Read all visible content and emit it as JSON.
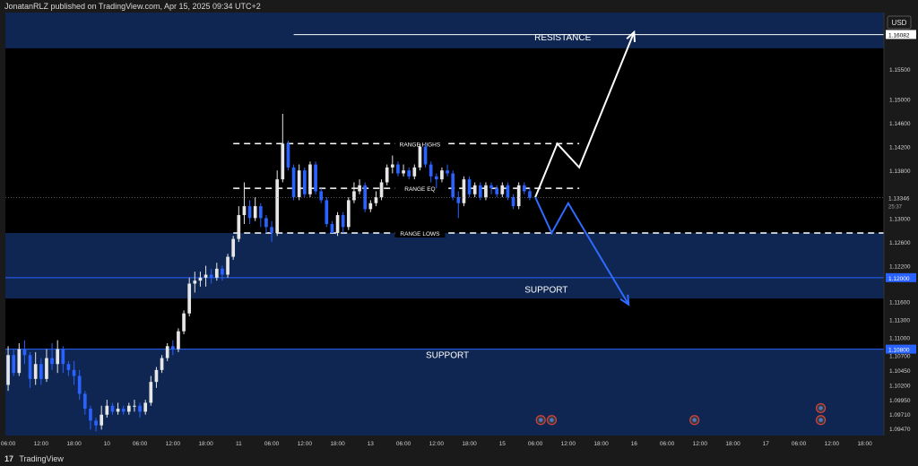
{
  "header": {
    "published": "JonatanRLZ published on TradingView.com, Apr 15, 2025 09:34 UTC+2"
  },
  "footer": {
    "logo": "17",
    "brand": "TradingView"
  },
  "colors": {
    "background": "#000000",
    "bull": "#e6e6e6",
    "bear": "#2962ff",
    "zone": "#102a5a",
    "support_line": "#2962ff",
    "projection_up": "#ffffff",
    "projection_down": "#2f6bff"
  },
  "chart_data": {
    "type": "candlestick",
    "symbol_currency": "USD",
    "ylim": [
      1.0935,
      1.1645
    ],
    "y_ticks": [
      1.155,
      1.15,
      1.146,
      1.142,
      1.138,
      1.13,
      1.126,
      1.122,
      1.116,
      1.113,
      1.11,
      1.107,
      1.1045,
      1.102,
      1.0995,
      1.0971,
      1.0947
    ],
    "y_tick_labels": [
      "1.15500",
      "1.15000",
      "1.14600",
      "1.14200",
      "1.13800",
      "1.13000",
      "1.12600",
      "1.12200",
      "1.11600",
      "1.11300",
      "1.11000",
      "1.10700",
      "1.10450",
      "1.10200",
      "1.09950",
      "1.09710",
      "1.09470"
    ],
    "x_ticks": [
      0,
      6,
      12,
      18,
      24,
      30,
      36,
      42,
      48,
      54,
      60,
      66,
      72,
      78,
      84,
      90,
      96,
      102,
      108,
      114,
      120,
      126,
      132,
      138,
      144,
      150,
      156
    ],
    "x_tick_labels": [
      "06:00",
      "12:00",
      "18:00",
      "10",
      "06:00",
      "12:00",
      "18:00",
      "11",
      "06:00",
      "12:00",
      "18:00",
      "13",
      "06:00",
      "12:00",
      "18:00",
      "15",
      "06:00",
      "12:00",
      "18:00",
      "16",
      "06:00",
      "12:00",
      "18:00",
      "17",
      "06:00",
      "12:00",
      "18:00"
    ],
    "xlim": [
      -0.5,
      159.5
    ],
    "price_labels": [
      {
        "value": 1.16082,
        "label": "1.16082"
      },
      {
        "value": 1.13346,
        "label": "1.13346",
        "sub": "25:37"
      },
      {
        "value": 1.12,
        "label": "1.12000"
      },
      {
        "value": 1.108,
        "label": "1.10800"
      }
    ],
    "zones": [
      {
        "name": "resistance-zone",
        "from": 1.1585,
        "to": 1.1645,
        "label": "RESISTANCE"
      },
      {
        "name": "support-zone-upper",
        "from": 1.1165,
        "to": 1.1275,
        "label": "SUPPORT"
      },
      {
        "name": "support-zone-lower",
        "from": 1.0935,
        "to": 1.108,
        "label": "SUPPORT"
      }
    ],
    "support_lines": [
      1.12,
      1.108
    ],
    "resistance_line": {
      "value": 1.1608,
      "x_start": 52,
      "x_end": 158
    },
    "range": {
      "x_start": 41,
      "x_end": 104,
      "highs": {
        "value": 1.1425,
        "label": "RANGE HIGHS"
      },
      "eq": {
        "value": 1.135,
        "label": "RANGE EQ"
      },
      "lows": {
        "value": 1.1275,
        "label": "RANGE LOWS"
      },
      "lows_extended_to": 159.5
    },
    "projection_up": [
      [
        96,
        1.1335
      ],
      [
        100,
        1.1425
      ],
      [
        104,
        1.1385
      ],
      [
        114,
        1.1612
      ]
    ],
    "projection_down": [
      [
        96,
        1.1335
      ],
      [
        99,
        1.1275
      ],
      [
        102,
        1.1325
      ],
      [
        113,
        1.1155
      ]
    ],
    "event_markers": [
      {
        "x": 97,
        "y": 1.0961,
        "kind": "flag"
      },
      {
        "x": 99,
        "y": 1.0961,
        "kind": "flag"
      },
      {
        "x": 125,
        "y": 1.0961,
        "kind": "flag"
      },
      {
        "x": 148,
        "y": 1.0981,
        "kind": "flag"
      },
      {
        "x": 148,
        "y": 1.0961,
        "kind": "flag"
      }
    ],
    "candles": [
      [
        0,
        1.102,
        1.107,
        1.1085,
        1.101
      ],
      [
        1,
        1.107,
        1.104,
        1.108,
        1.1035
      ],
      [
        2,
        1.104,
        1.108,
        1.109,
        1.1035
      ],
      [
        3,
        1.108,
        1.107,
        1.1095,
        1.1055
      ],
      [
        4,
        1.107,
        1.103,
        1.1075,
        1.1015
      ],
      [
        5,
        1.103,
        1.1055,
        1.1075,
        1.102
      ],
      [
        6,
        1.1055,
        1.103,
        1.1065,
        1.102
      ],
      [
        7,
        1.103,
        1.1065,
        1.108,
        1.1025
      ],
      [
        8,
        1.1065,
        1.1055,
        1.109,
        1.1045
      ],
      [
        9,
        1.1055,
        1.108,
        1.1095,
        1.104
      ],
      [
        10,
        1.108,
        1.1055,
        1.1085,
        1.104
      ],
      [
        11,
        1.1055,
        1.1045,
        1.106,
        1.1035
      ],
      [
        12,
        1.1045,
        1.1035,
        1.106,
        1.102
      ],
      [
        13,
        1.1035,
        1.1005,
        1.1045,
        1.0995
      ],
      [
        14,
        1.1005,
        1.098,
        1.101,
        1.097
      ],
      [
        15,
        1.098,
        1.096,
        1.0985,
        1.0945
      ],
      [
        16,
        1.096,
        1.0952,
        1.0965,
        1.0942
      ],
      [
        17,
        1.0952,
        1.097,
        1.0985,
        1.0945
      ],
      [
        18,
        1.097,
        1.0985,
        1.0995,
        1.0965
      ],
      [
        19,
        1.0985,
        1.0975,
        1.099,
        1.097
      ],
      [
        20,
        1.0975,
        1.098,
        1.099,
        1.097
      ],
      [
        21,
        1.098,
        1.0975,
        1.0985,
        1.097
      ],
      [
        22,
        1.0975,
        1.0985,
        1.099,
        1.097
      ],
      [
        23,
        1.0985,
        1.0985,
        1.0995,
        1.0975
      ],
      [
        24,
        1.0985,
        1.0975,
        1.099,
        1.0965
      ],
      [
        25,
        1.0975,
        1.099,
        1.0995,
        1.097
      ],
      [
        26,
        1.099,
        1.1025,
        1.1035,
        1.0985
      ],
      [
        27,
        1.1025,
        1.1045,
        1.105,
        1.1015
      ],
      [
        28,
        1.1045,
        1.1065,
        1.107,
        1.104
      ],
      [
        29,
        1.1065,
        1.1085,
        1.109,
        1.106
      ],
      [
        30,
        1.1085,
        1.108,
        1.1095,
        1.107
      ],
      [
        31,
        1.108,
        1.111,
        1.1115,
        1.1075
      ],
      [
        32,
        1.111,
        1.114,
        1.1145,
        1.1105
      ],
      [
        33,
        1.114,
        1.119,
        1.12,
        1.1135
      ],
      [
        34,
        1.119,
        1.1195,
        1.121,
        1.1175
      ],
      [
        35,
        1.1195,
        1.12,
        1.121,
        1.1185
      ],
      [
        36,
        1.12,
        1.1205,
        1.122,
        1.1185
      ],
      [
        37,
        1.1205,
        1.12,
        1.1215,
        1.119
      ],
      [
        38,
        1.12,
        1.1215,
        1.1225,
        1.1195
      ],
      [
        39,
        1.1215,
        1.1205,
        1.122,
        1.1195
      ],
      [
        40,
        1.1205,
        1.1235,
        1.124,
        1.12
      ],
      [
        41,
        1.1235,
        1.1265,
        1.127,
        1.123
      ],
      [
        42,
        1.1265,
        1.1305,
        1.132,
        1.126
      ],
      [
        43,
        1.1305,
        1.132,
        1.136,
        1.129
      ],
      [
        44,
        1.132,
        1.13,
        1.133,
        1.129
      ],
      [
        45,
        1.13,
        1.132,
        1.1335,
        1.1295
      ],
      [
        46,
        1.132,
        1.13,
        1.1325,
        1.1285
      ],
      [
        47,
        1.13,
        1.1285,
        1.1305,
        1.1275
      ],
      [
        48,
        1.1285,
        1.1275,
        1.1295,
        1.126
      ],
      [
        49,
        1.1275,
        1.1365,
        1.138,
        1.127
      ],
      [
        50,
        1.1365,
        1.1425,
        1.1475,
        1.136
      ],
      [
        51,
        1.1425,
        1.1385,
        1.143,
        1.138
      ],
      [
        52,
        1.1385,
        1.1335,
        1.139,
        1.133
      ],
      [
        53,
        1.1335,
        1.138,
        1.139,
        1.133
      ],
      [
        54,
        1.138,
        1.134,
        1.1385,
        1.1335
      ],
      [
        55,
        1.134,
        1.139,
        1.1395,
        1.1335
      ],
      [
        56,
        1.139,
        1.1345,
        1.1395,
        1.134
      ],
      [
        57,
        1.1345,
        1.133,
        1.135,
        1.1325
      ],
      [
        58,
        1.133,
        1.129,
        1.1335,
        1.1285
      ],
      [
        59,
        1.129,
        1.1275,
        1.1295,
        1.1275
      ],
      [
        60,
        1.1275,
        1.1305,
        1.131,
        1.127
      ],
      [
        61,
        1.1305,
        1.1285,
        1.131,
        1.1275
      ],
      [
        62,
        1.1285,
        1.133,
        1.1335,
        1.128
      ],
      [
        63,
        1.133,
        1.1345,
        1.136,
        1.1325
      ],
      [
        64,
        1.1345,
        1.1355,
        1.1365,
        1.134
      ],
      [
        65,
        1.1355,
        1.1315,
        1.136,
        1.131
      ],
      [
        66,
        1.1315,
        1.1325,
        1.133,
        1.131
      ],
      [
        67,
        1.1325,
        1.1335,
        1.1345,
        1.132
      ],
      [
        68,
        1.1335,
        1.136,
        1.1365,
        1.133
      ],
      [
        69,
        1.136,
        1.1385,
        1.139,
        1.1355
      ],
      [
        70,
        1.1385,
        1.139,
        1.1405,
        1.1375
      ],
      [
        71,
        1.139,
        1.1375,
        1.1395,
        1.137
      ],
      [
        72,
        1.1375,
        1.138,
        1.139,
        1.137
      ],
      [
        73,
        1.138,
        1.137,
        1.1385,
        1.1365
      ],
      [
        74,
        1.137,
        1.1385,
        1.139,
        1.1365
      ],
      [
        75,
        1.1385,
        1.142,
        1.1425,
        1.138
      ],
      [
        76,
        1.142,
        1.139,
        1.1425,
        1.1385
      ],
      [
        77,
        1.139,
        1.137,
        1.1395,
        1.136
      ],
      [
        78,
        1.137,
        1.1365,
        1.1375,
        1.135
      ],
      [
        79,
        1.1365,
        1.138,
        1.1385,
        1.136
      ],
      [
        80,
        1.138,
        1.1375,
        1.139,
        1.137
      ],
      [
        81,
        1.1375,
        1.1335,
        1.138,
        1.133
      ],
      [
        82,
        1.1335,
        1.1325,
        1.1345,
        1.13
      ],
      [
        83,
        1.1325,
        1.1365,
        1.137,
        1.132
      ],
      [
        84,
        1.1365,
        1.134,
        1.137,
        1.1335
      ],
      [
        85,
        1.134,
        1.1355,
        1.136,
        1.1335
      ],
      [
        86,
        1.1355,
        1.1335,
        1.136,
        1.133
      ],
      [
        87,
        1.1335,
        1.1355,
        1.136,
        1.133
      ],
      [
        88,
        1.1355,
        1.135,
        1.136,
        1.134
      ],
      [
        89,
        1.135,
        1.134,
        1.1355,
        1.1335
      ],
      [
        90,
        1.134,
        1.1355,
        1.136,
        1.1335
      ],
      [
        91,
        1.1355,
        1.1335,
        1.136,
        1.133
      ],
      [
        92,
        1.1335,
        1.132,
        1.134,
        1.1315
      ],
      [
        93,
        1.132,
        1.1355,
        1.136,
        1.1315
      ],
      [
        94,
        1.1355,
        1.1345,
        1.136,
        1.134
      ],
      [
        95,
        1.1345,
        1.1334,
        1.135,
        1.133
      ]
    ]
  }
}
